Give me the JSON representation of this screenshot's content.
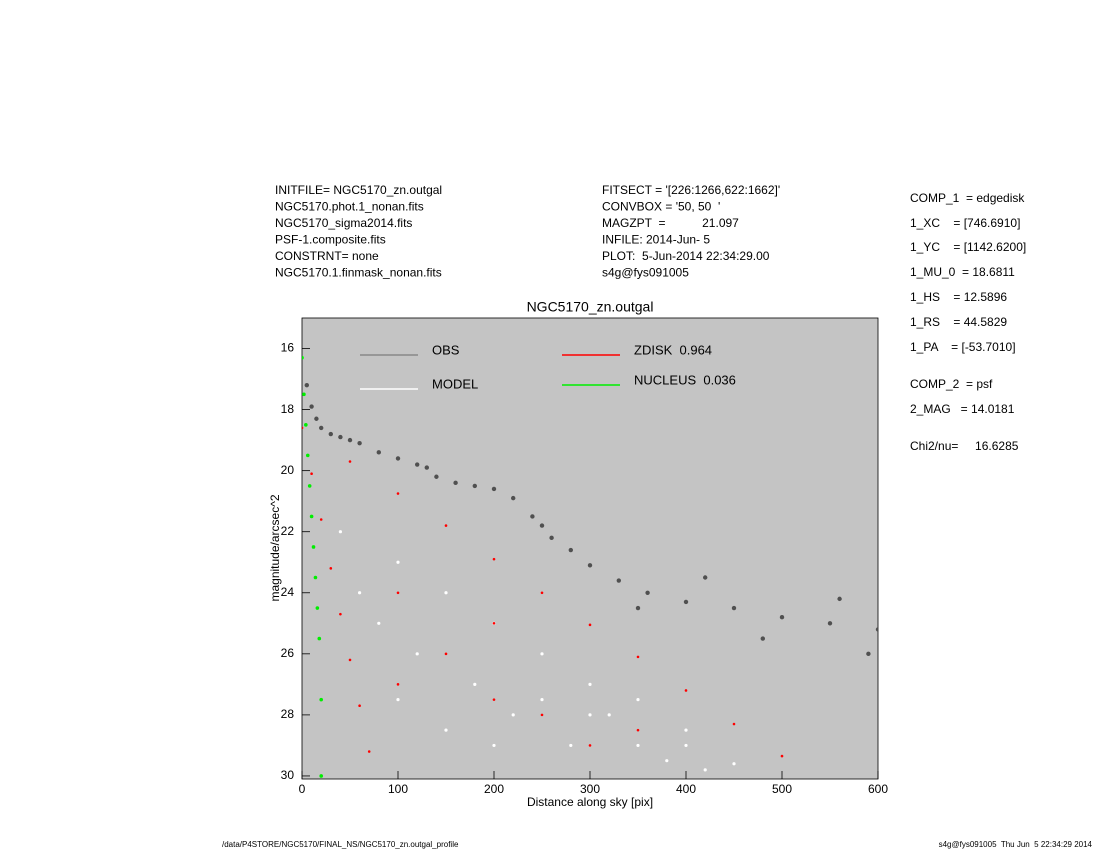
{
  "header": {
    "left": [
      "INITFILE= NGC5170_zn.outgal",
      "NGC5170.phot.1_nonan.fits",
      "NGC5170_sigma2014.fits",
      "PSF-1.composite.fits",
      "CONSTRNT= none",
      "NGC5170.1.finmask_nonan.fits"
    ],
    "middle": [
      "FITSECT = '[226:1266,622:1662]'",
      "CONVBOX = '50, 50  '",
      "MAGZPT  =           21.097",
      "INFILE: 2014-Jun- 5",
      "PLOT:  5-Jun-2014 22:34:29.00",
      "s4g@fys091005"
    ],
    "right": [
      "COMP_1  = edgedisk",
      "1_XC    = [746.6910]",
      "1_YC    = [1142.6200]",
      "1_MU_0  = 18.6811",
      "1_HS    = 12.5896",
      "1_RS    = 44.5829",
      "1_PA    = [-53.7010]",
      "COMP_2  = psf",
      "2_MAG   = 14.0181",
      "Chi2/nu=     16.6285"
    ]
  },
  "footer": {
    "left": "/data/P4STORE/NGC5170/FINAL_NS/NGC5170_zn.outgal_profile",
    "right": "s4g@fys091005  Thu Jun  5 22:34:29 2014"
  },
  "chart_data": {
    "type": "scatter",
    "title": "NGC5170_zn.outgal",
    "x_label": "Distance along sky [pix]",
    "y_label": "magnitude/arcsec^2",
    "xlim": [
      0,
      600
    ],
    "xticks": [
      0,
      100,
      200,
      300,
      400,
      500,
      600
    ],
    "ylim": [
      15,
      30.1
    ],
    "yticks": [
      16,
      18,
      20,
      22,
      24,
      26,
      28,
      30
    ],
    "y_inverted": true,
    "background": "#c4c4c4",
    "series": [
      {
        "name": "OBS",
        "color": "#505050",
        "x": [
          5,
          10,
          15,
          20,
          30,
          40,
          50,
          60,
          80,
          100,
          120,
          140,
          160,
          180,
          200,
          220,
          240,
          260,
          280,
          300,
          330,
          360,
          400,
          450,
          500,
          550,
          600,
          130,
          250,
          350,
          420,
          480,
          560,
          590
        ],
        "values": [
          17.2,
          17.9,
          18.3,
          18.6,
          18.8,
          18.9,
          19.0,
          19.1,
          19.4,
          19.6,
          19.8,
          20.2,
          20.4,
          20.5,
          20.6,
          20.9,
          21.5,
          22.2,
          22.6,
          23.1,
          23.6,
          24.0,
          24.3,
          24.5,
          24.8,
          25.0,
          25.2,
          19.9,
          21.8,
          24.5,
          23.5,
          25.5,
          24.2,
          26.0
        ]
      },
      {
        "name": "MODEL",
        "color": "#ffffff",
        "x": [
          40,
          60,
          80,
          100,
          120,
          150,
          180,
          200,
          220,
          250,
          280,
          300,
          320,
          350,
          380,
          400,
          420,
          450,
          100,
          150,
          200,
          250,
          300,
          350,
          400
        ],
        "values": [
          22.0,
          24.0,
          25.0,
          23.0,
          26.0,
          24.0,
          27.0,
          25.0,
          28.0,
          26.0,
          29.0,
          27.0,
          28.0,
          29.0,
          29.5,
          28.5,
          29.8,
          29.6,
          27.5,
          28.5,
          29.0,
          27.5,
          28.0,
          27.5,
          29.0
        ]
      },
      {
        "name": "ZDISK  0.964",
        "color": "#ff0000",
        "x": [
          0,
          50,
          100,
          150,
          200,
          250,
          300,
          350,
          400,
          450,
          500,
          10,
          20,
          30,
          40,
          50,
          60,
          70,
          100,
          150,
          200,
          250,
          300,
          350,
          100,
          200
        ],
        "values": [
          18.6,
          19.7,
          20.75,
          21.8,
          22.9,
          24.0,
          25.05,
          26.1,
          27.2,
          28.3,
          29.35,
          20.1,
          21.6,
          23.2,
          24.7,
          26.2,
          27.7,
          29.2,
          27.0,
          26.0,
          27.5,
          28.0,
          29.0,
          28.5,
          24.0,
          25.0
        ]
      },
      {
        "name": "NUCLEUS  0.036",
        "color": "#00ee00",
        "x": [
          0,
          2,
          4,
          6,
          8,
          10,
          12,
          14,
          16,
          18,
          20,
          20
        ],
        "values": [
          16.3,
          17.5,
          18.5,
          19.5,
          20.5,
          21.5,
          22.5,
          23.5,
          24.5,
          25.5,
          27.5,
          30.0
        ]
      }
    ]
  }
}
